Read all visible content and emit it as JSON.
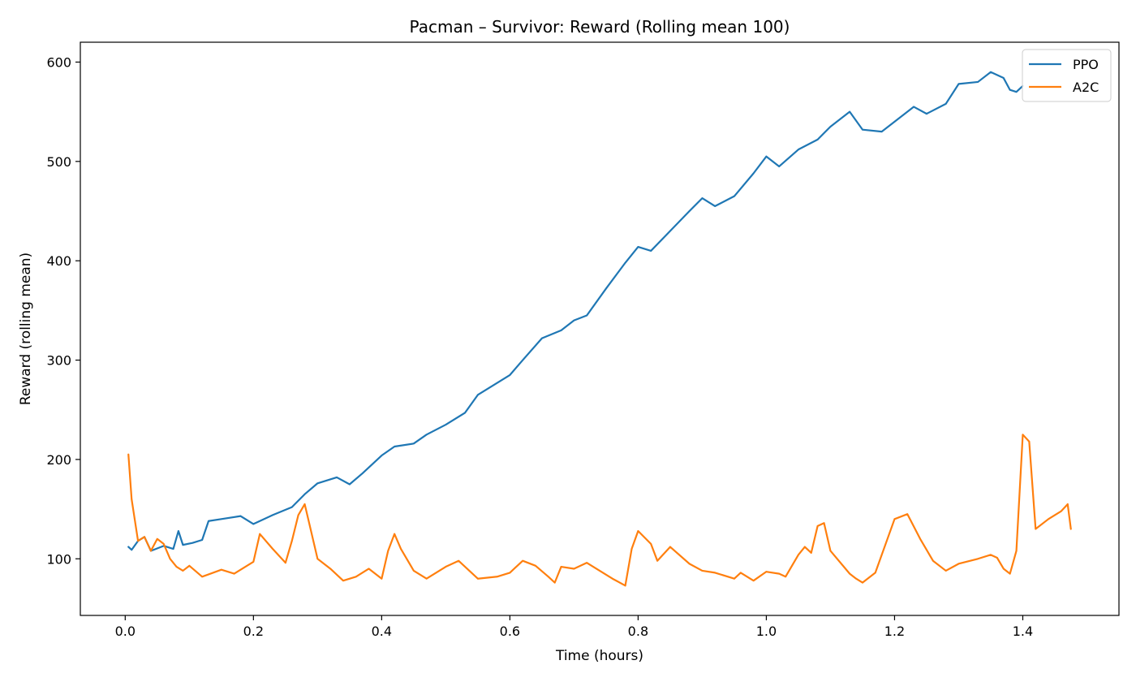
{
  "chart_data": {
    "type": "line",
    "title": "Pacman – Survivor: Reward (Rolling mean 100)",
    "xlabel": "Time (hours)",
    "ylabel": "Reward (rolling mean)",
    "xlim": [
      -0.07,
      1.55
    ],
    "ylim": [
      43,
      620
    ],
    "xticks": [
      0.0,
      0.2,
      0.4,
      0.6,
      0.8,
      1.0,
      1.2,
      1.4
    ],
    "xtick_labels": [
      "0.0",
      "0.2",
      "0.4",
      "0.6",
      "0.8",
      "1.0",
      "1.2",
      "1.4"
    ],
    "yticks": [
      100,
      200,
      300,
      400,
      500,
      600
    ],
    "ytick_labels": [
      "100",
      "200",
      "300",
      "400",
      "500",
      "600"
    ],
    "grid": false,
    "legend": {
      "position": "top-right"
    },
    "series": [
      {
        "name": "PPO",
        "color": "#1f77b4",
        "x": [
          0.005,
          0.01,
          0.02,
          0.03,
          0.04,
          0.06,
          0.075,
          0.083,
          0.09,
          0.105,
          0.12,
          0.13,
          0.15,
          0.18,
          0.2,
          0.23,
          0.26,
          0.28,
          0.3,
          0.33,
          0.35,
          0.37,
          0.4,
          0.42,
          0.45,
          0.47,
          0.5,
          0.53,
          0.55,
          0.6,
          0.62,
          0.65,
          0.68,
          0.7,
          0.72,
          0.75,
          0.78,
          0.8,
          0.82,
          0.85,
          0.88,
          0.9,
          0.92,
          0.95,
          0.98,
          1.0,
          1.02,
          1.05,
          1.08,
          1.1,
          1.13,
          1.15,
          1.18,
          1.2,
          1.23,
          1.25,
          1.28,
          1.3,
          1.33,
          1.35,
          1.37,
          1.38,
          1.39,
          1.4
        ],
        "y": [
          112,
          109,
          118,
          122,
          108,
          113,
          110,
          128,
          114,
          116,
          119,
          138,
          140,
          143,
          135,
          144,
          152,
          165,
          176,
          182,
          175,
          186,
          204,
          213,
          216,
          225,
          235,
          247,
          265,
          285,
          300,
          322,
          330,
          340,
          345,
          372,
          398,
          414,
          410,
          430,
          450,
          463,
          455,
          465,
          488,
          505,
          495,
          512,
          522,
          535,
          550,
          532,
          530,
          540,
          555,
          548,
          558,
          578,
          580,
          590,
          584,
          572,
          570,
          576
        ]
      },
      {
        "name": "A2C",
        "color": "#ff7f0e",
        "x": [
          0.005,
          0.01,
          0.02,
          0.03,
          0.04,
          0.05,
          0.06,
          0.07,
          0.08,
          0.09,
          0.1,
          0.12,
          0.15,
          0.17,
          0.2,
          0.21,
          0.23,
          0.25,
          0.26,
          0.27,
          0.28,
          0.3,
          0.32,
          0.34,
          0.36,
          0.38,
          0.4,
          0.41,
          0.42,
          0.43,
          0.45,
          0.47,
          0.5,
          0.52,
          0.55,
          0.58,
          0.6,
          0.62,
          0.64,
          0.66,
          0.67,
          0.68,
          0.7,
          0.72,
          0.74,
          0.76,
          0.78,
          0.79,
          0.8,
          0.82,
          0.83,
          0.85,
          0.88,
          0.9,
          0.92,
          0.95,
          0.96,
          0.98,
          1.0,
          1.02,
          1.03,
          1.05,
          1.06,
          1.07,
          1.08,
          1.09,
          1.1,
          1.13,
          1.14,
          1.15,
          1.17,
          1.2,
          1.22,
          1.24,
          1.26,
          1.28,
          1.3,
          1.33,
          1.35,
          1.36,
          1.37,
          1.38,
          1.39,
          1.4,
          1.41,
          1.42,
          1.44,
          1.46,
          1.47,
          1.475
        ],
        "y": [
          205,
          160,
          118,
          122,
          108,
          120,
          115,
          100,
          92,
          88,
          93,
          82,
          89,
          85,
          97,
          125,
          110,
          96,
          118,
          144,
          155,
          100,
          90,
          78,
          82,
          90,
          80,
          108,
          125,
          110,
          88,
          80,
          92,
          98,
          80,
          82,
          86,
          98,
          93,
          82,
          76,
          92,
          90,
          96,
          88,
          80,
          73,
          110,
          128,
          115,
          98,
          112,
          95,
          88,
          86,
          80,
          86,
          78,
          87,
          85,
          82,
          104,
          112,
          106,
          133,
          136,
          108,
          85,
          80,
          76,
          86,
          140,
          145,
          120,
          98,
          88,
          95,
          100,
          104,
          101,
          90,
          85,
          108,
          225,
          218,
          130,
          140,
          148,
          155,
          130
        ]
      }
    ]
  }
}
